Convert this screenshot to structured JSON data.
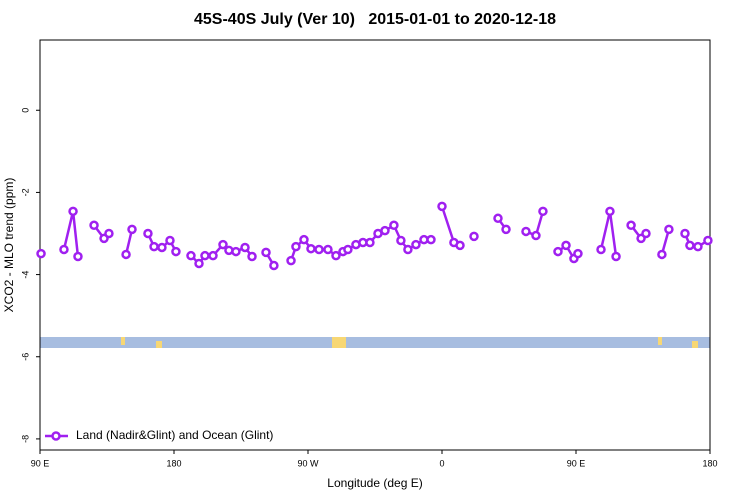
{
  "chart_data": {
    "type": "line",
    "title": "45S-40S July (Ver 10)   2015-01-01 to 2020-12-18",
    "x_label": "Longitude (deg E)",
    "y_label": "XCO2 - MLO trend (ppm)",
    "xlim": [
      90,
      540
    ],
    "ylim": [
      -8.27,
      1.71
    ],
    "xticks": [
      {
        "value": 90,
        "label": "90 E"
      },
      180,
      {
        "value": 270,
        "label": "90 W"
      },
      {
        "value": 360,
        "label": "0"
      },
      {
        "value": 450,
        "label": "90 E"
      },
      {
        "value": 540,
        "label": "180"
      }
    ],
    "yticks": [
      0,
      -2,
      -4,
      -6,
      -8
    ],
    "legend_position": "bottom-left",
    "series": [
      {
        "name": "Land (Nadir&Glint) and Ocean (Glint)",
        "color": "#a020f0",
        "x": [
          90.7,
          null,
          106.1,
          112.2,
          115.5,
          null,
          126.3,
          133.0,
          136.3,
          null,
          147.8,
          151.8,
          null,
          162.5,
          166.6,
          171.9,
          177.3,
          181.3,
          null,
          191.4,
          196.8,
          200.8,
          206.2,
          212.9,
          216.9,
          221.6,
          227.7,
          232.4,
          null,
          241.8,
          247.1,
          null,
          258.6,
          261.9,
          267.3,
          272.0,
          277.4,
          283.4,
          288.8,
          293.5,
          296.8,
          302.2,
          306.9,
          311.6,
          317.0,
          321.7,
          327.7,
          332.4,
          337.1,
          342.5,
          347.9,
          352.6,
          null,
          360.0,
          368.0,
          372.1,
          null,
          381.5,
          null,
          397.6,
          403.0,
          null,
          416.4,
          423.1,
          427.8,
          null,
          437.9,
          443.3,
          448.6,
          451.3,
          null,
          466.8,
          472.8,
          476.9,
          null,
          487.0,
          493.7,
          497.0,
          null,
          507.7,
          512.4,
          null,
          523.2,
          526.5,
          531.9,
          538.6
        ],
        "values": [
          -3.49,
          null,
          -3.39,
          -2.46,
          -3.56,
          null,
          -2.8,
          -3.12,
          -3.0,
          null,
          -3.51,
          -2.9,
          null,
          -3.0,
          -3.32,
          -3.34,
          -3.17,
          -3.44,
          null,
          -3.54,
          -3.73,
          -3.54,
          -3.54,
          -3.27,
          -3.41,
          -3.44,
          -3.34,
          -3.56,
          null,
          -3.46,
          -3.78,
          null,
          -3.66,
          -3.32,
          -3.15,
          -3.37,
          -3.39,
          -3.39,
          -3.54,
          -3.44,
          -3.39,
          -3.27,
          -3.22,
          -3.22,
          -3.0,
          -2.93,
          -2.8,
          -3.17,
          -3.39,
          -3.27,
          -3.15,
          -3.15,
          null,
          -2.34,
          -3.22,
          -3.29,
          null,
          -3.07,
          null,
          -2.63,
          -2.9,
          null,
          -2.95,
          -3.05,
          -2.46,
          null,
          -3.44,
          -3.29,
          -3.61,
          -3.49,
          null,
          -3.39,
          -2.46,
          -3.56,
          null,
          -2.8,
          -3.12,
          -3.0,
          null,
          -3.51,
          -2.9,
          null,
          -3.0,
          -3.29,
          -3.32,
          -3.17
        ]
      }
    ]
  }
}
